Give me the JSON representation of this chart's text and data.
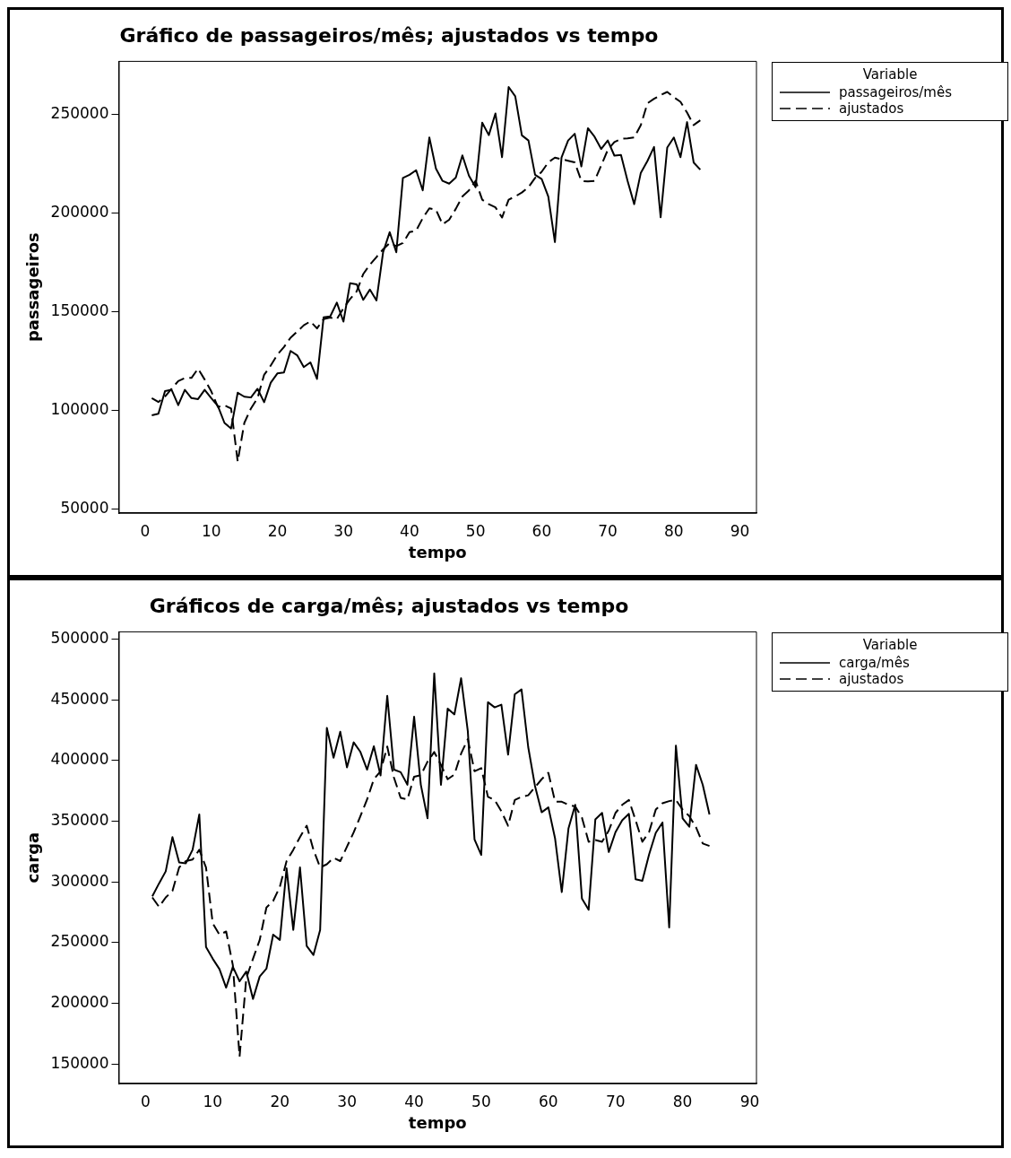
{
  "chart_data": [
    {
      "type": "line",
      "title": "Gráfico de passageiros/mês; ajustados vs tempo",
      "xlabel": "tempo",
      "ylabel": "passageiros",
      "legend_title": "Variable",
      "legend": "top right",
      "grid": false,
      "marker": "none",
      "x": [
        1,
        2,
        3,
        4,
        5,
        6,
        7,
        8,
        9,
        10,
        11,
        12,
        13,
        14,
        15,
        16,
        17,
        18,
        19,
        20,
        21,
        22,
        23,
        24,
        25,
        26,
        27,
        28,
        29,
        30,
        31,
        32,
        33,
        34,
        35,
        36,
        37,
        38,
        39,
        40,
        41,
        42,
        43,
        44,
        45,
        46,
        47,
        48,
        49,
        50,
        51,
        52,
        53,
        54,
        55,
        56,
        57,
        58,
        59,
        60,
        61,
        62,
        63,
        64,
        65,
        66,
        67,
        68,
        69,
        70,
        71,
        72,
        73,
        74,
        75,
        76,
        77,
        78,
        79,
        80,
        81,
        82,
        83,
        84
      ],
      "xlim": [
        -4,
        92.5
      ],
      "xticks": [
        0,
        10,
        20,
        30,
        40,
        50,
        60,
        70,
        80,
        90
      ],
      "ylim": [
        48000,
        277000
      ],
      "yticks": [
        50000,
        100000,
        150000,
        200000,
        250000
      ],
      "series": [
        {
          "name": "passageiros/mês",
          "color": "#000000",
          "line_style": "solid",
          "values": [
            97600,
            98400,
            109800,
            110500,
            102700,
            110500,
            106300,
            105800,
            110500,
            106300,
            102300,
            93700,
            90900,
            109000,
            107000,
            106600,
            111000,
            104200,
            114100,
            118800,
            119300,
            130200,
            128000,
            122000,
            124400,
            116000,
            147200,
            147700,
            154700,
            145100,
            164500,
            164000,
            156100,
            161300,
            155800,
            180200,
            190400,
            180200,
            217900,
            219500,
            221800,
            211600,
            238400,
            222600,
            216400,
            215000,
            218100,
            229300,
            219000,
            213200,
            245900,
            239600,
            250600,
            228400,
            264000,
            259300,
            239500,
            236900,
            219500,
            217300,
            208500,
            185400,
            228200,
            236900,
            240300,
            223700,
            243100,
            238800,
            232600,
            236900,
            229200,
            229500,
            216400,
            204600,
            220500,
            226500,
            233600,
            198000,
            233300,
            238400,
            228400,
            246200,
            225700,
            222100
          ]
        },
        {
          "name": "ajustados",
          "color": "#000000",
          "line_style": "dashed",
          "values": [
            106300,
            104300,
            107100,
            111000,
            114900,
            116500,
            116500,
            121200,
            115700,
            109700,
            101800,
            102600,
            101000,
            74100,
            93700,
            101000,
            106300,
            118100,
            122800,
            128300,
            132200,
            136900,
            140000,
            143200,
            145200,
            141600,
            146300,
            147100,
            146300,
            151800,
            156500,
            160400,
            169200,
            173900,
            177800,
            181700,
            184900,
            183300,
            184900,
            190400,
            191200,
            197500,
            202500,
            201800,
            194400,
            196700,
            202200,
            208500,
            211600,
            216400,
            206900,
            204600,
            203000,
            197800,
            206900,
            208500,
            210500,
            213200,
            217900,
            221000,
            225800,
            228200,
            227400,
            226600,
            225800,
            216400,
            216100,
            216400,
            224200,
            232100,
            236100,
            237700,
            238000,
            238400,
            244700,
            255700,
            258000,
            259900,
            261500,
            258800,
            256500,
            251000,
            244700,
            247100
          ]
        }
      ]
    },
    {
      "type": "line",
      "title": "Gráficos de carga/mês; ajustados vs tempo",
      "xlabel": "tempo",
      "ylabel": "carga",
      "legend_title": "Variable",
      "legend": "top right",
      "grid": false,
      "marker": "none",
      "x": [
        1,
        2,
        3,
        4,
        5,
        6,
        7,
        8,
        9,
        10,
        11,
        12,
        13,
        14,
        15,
        16,
        17,
        18,
        19,
        20,
        21,
        22,
        23,
        24,
        25,
        26,
        27,
        28,
        29,
        30,
        31,
        32,
        33,
        34,
        35,
        36,
        37,
        38,
        39,
        40,
        41,
        42,
        43,
        44,
        45,
        46,
        47,
        48,
        49,
        50,
        51,
        52,
        53,
        54,
        55,
        56,
        57,
        58,
        59,
        60,
        61,
        62,
        63,
        64,
        65,
        66,
        67,
        68,
        69,
        70,
        71,
        72,
        73,
        74,
        75,
        76,
        77,
        78,
        79,
        80,
        81,
        82,
        83,
        84
      ],
      "xlim": [
        -4,
        91
      ],
      "xticks": [
        0,
        10,
        20,
        30,
        40,
        50,
        60,
        70,
        80,
        90
      ],
      "ylim": [
        134000,
        506000
      ],
      "yticks": [
        150000,
        200000,
        250000,
        300000,
        350000,
        400000,
        450000,
        500000
      ],
      "series": [
        {
          "name": "carga/mês",
          "color": "#000000",
          "line_style": "solid",
          "values": [
            288200,
            298800,
            308800,
            337000,
            316000,
            315400,
            326500,
            355600,
            246500,
            236800,
            228300,
            213000,
            230100,
            218200,
            226200,
            203700,
            222200,
            228600,
            256600,
            252300,
            311200,
            260500,
            312000,
            247300,
            239900,
            260500,
            426900,
            402300,
            423700,
            394400,
            415000,
            407100,
            392500,
            411800,
            387700,
            453300,
            392500,
            390400,
            380100,
            436100,
            380100,
            352400,
            471700,
            380000,
            442700,
            438000,
            467800,
            424200,
            335000,
            322300,
            448000,
            443800,
            446000,
            404900,
            454600,
            458600,
            411000,
            379300,
            357400,
            361400,
            335800,
            291700,
            344200,
            363500,
            286400,
            277100,
            351600,
            356900,
            324700,
            341000,
            350800,
            356100,
            302200,
            300900,
            322600,
            340500,
            349000,
            262600,
            412300,
            352400,
            345500,
            396500,
            380000,
            355600
          ]
        },
        {
          "name": "ajustados",
          "color": "#000000",
          "line_style": "dashed",
          "values": [
            287300,
            279500,
            287300,
            292600,
            312000,
            317200,
            318500,
            326500,
            312000,
            266000,
            256600,
            259200,
            231400,
            156200,
            220900,
            236800,
            252300,
            279000,
            284300,
            296100,
            317200,
            326500,
            337000,
            346300,
            326500,
            312000,
            314600,
            319900,
            317200,
            329100,
            340900,
            354200,
            368000,
            384600,
            391200,
            411500,
            385900,
            369300,
            368000,
            386700,
            387900,
            399100,
            407000,
            396500,
            384600,
            388500,
            405700,
            417600,
            391200,
            393800,
            370100,
            367500,
            358200,
            346300,
            367500,
            370100,
            371400,
            378000,
            384600,
            389900,
            366100,
            366100,
            363500,
            362200,
            353000,
            333100,
            334500,
            333100,
            342300,
            356900,
            363500,
            367500,
            350800,
            333100,
            341000,
            359600,
            364800,
            366600,
            367500,
            359600,
            354200,
            345000,
            331700,
            329700
          ]
        }
      ]
    }
  ]
}
